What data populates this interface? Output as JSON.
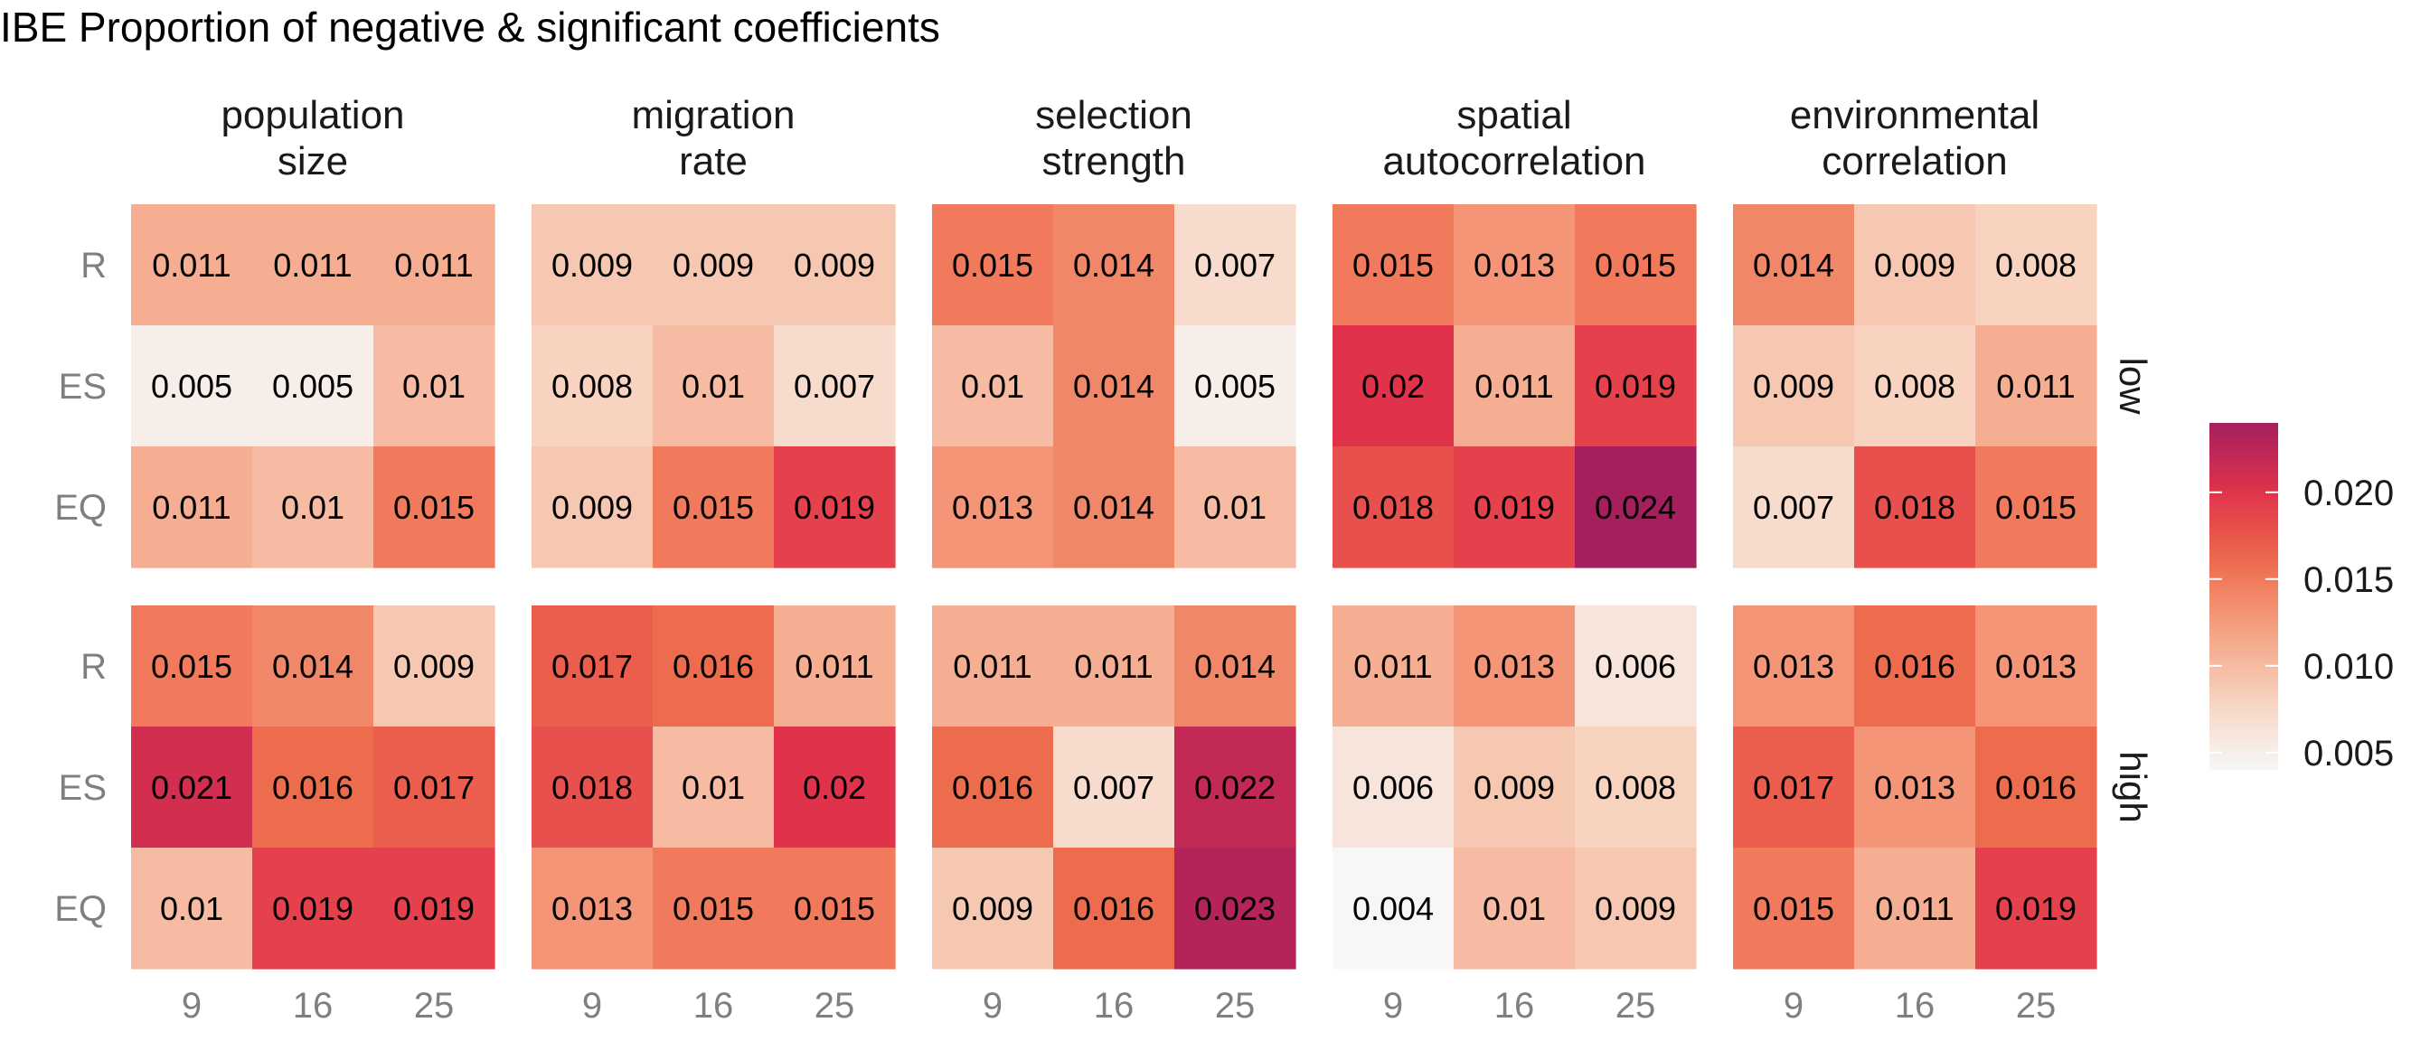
{
  "chart_data": {
    "type": "heatmap",
    "title": "IBE Proportion of negative & significant coefficients",
    "facets": [
      [
        "population",
        "size"
      ],
      [
        "migration",
        "rate"
      ],
      [
        "selection",
        "strength"
      ],
      [
        "spatial",
        "autocorrelation"
      ],
      [
        "environmental",
        "correlation"
      ]
    ],
    "x_categories": [
      "9",
      "16",
      "25"
    ],
    "y_categories": [
      "R",
      "ES",
      "EQ"
    ],
    "panel_rows": [
      "low",
      "high"
    ],
    "scale": {
      "min": 0.004,
      "max": 0.024,
      "ticks": [
        "0.005",
        "0.010",
        "0.015",
        "0.020"
      ],
      "tick_values": [
        0.005,
        0.01,
        0.015,
        0.02
      ],
      "colors": [
        "#f7f7f7",
        "#f7d3c0",
        "#f4a283",
        "#ee6c4e",
        "#e0334b",
        "#a51f5e"
      ]
    },
    "values": {
      "low": [
        [
          [
            0.011,
            0.011,
            0.011
          ],
          [
            0.005,
            0.005,
            0.01
          ],
          [
            0.011,
            0.01,
            0.015
          ]
        ],
        [
          [
            0.009,
            0.009,
            0.009
          ],
          [
            0.008,
            0.01,
            0.007
          ],
          [
            0.009,
            0.015,
            0.019
          ]
        ],
        [
          [
            0.015,
            0.014,
            0.007
          ],
          [
            0.01,
            0.014,
            0.005
          ],
          [
            0.013,
            0.014,
            0.01
          ]
        ],
        [
          [
            0.015,
            0.013,
            0.015
          ],
          [
            0.02,
            0.011,
            0.019
          ],
          [
            0.018,
            0.019,
            0.024
          ]
        ],
        [
          [
            0.014,
            0.009,
            0.008
          ],
          [
            0.009,
            0.008,
            0.011
          ],
          [
            0.007,
            0.018,
            0.015
          ]
        ]
      ],
      "high": [
        [
          [
            0.015,
            0.014,
            0.009
          ],
          [
            0.021,
            0.016,
            0.017
          ],
          [
            0.01,
            0.019,
            0.019
          ]
        ],
        [
          [
            0.017,
            0.016,
            0.011
          ],
          [
            0.018,
            0.01,
            0.02
          ],
          [
            0.013,
            0.015,
            0.015
          ]
        ],
        [
          [
            0.011,
            0.011,
            0.014
          ],
          [
            0.016,
            0.007,
            0.022
          ],
          [
            0.009,
            0.016,
            0.023
          ]
        ],
        [
          [
            0.011,
            0.013,
            0.006
          ],
          [
            0.006,
            0.009,
            0.008
          ],
          [
            0.004,
            0.01,
            0.009
          ]
        ],
        [
          [
            0.013,
            0.016,
            0.013
          ],
          [
            0.017,
            0.013,
            0.016
          ],
          [
            0.015,
            0.011,
            0.019
          ]
        ]
      ]
    },
    "grid": false,
    "legend": "right"
  }
}
